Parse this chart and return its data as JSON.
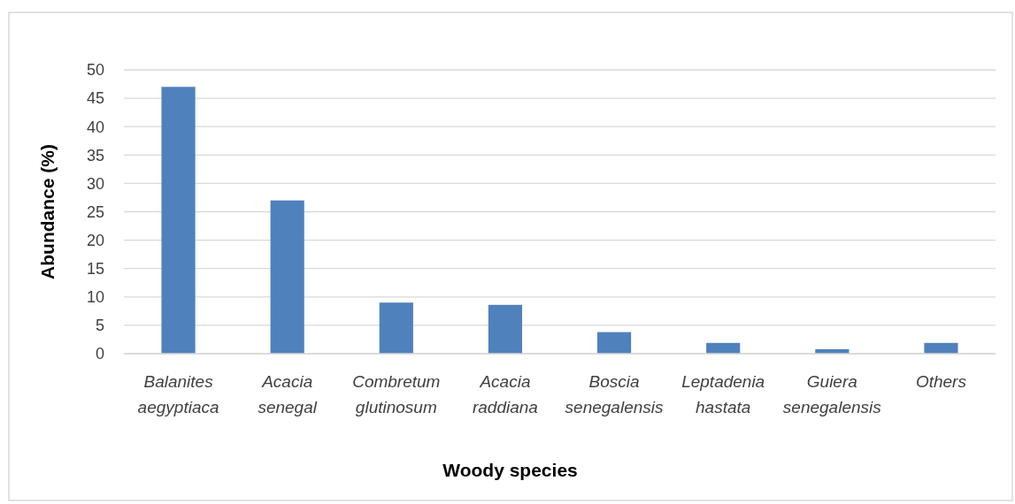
{
  "chart_data": {
    "type": "bar",
    "xlabel": "Woody species",
    "ylabel": "Abundance (%)",
    "categories": [
      "Balanites aegyptiaca",
      "Acacia senegal",
      "Combretum glutinosum",
      "Acacia raddiana",
      "Boscia senegalensis",
      "Leptadenia hastata",
      "Guiera senegalensis",
      "Others"
    ],
    "values": [
      47,
      27,
      9,
      8.6,
      3.8,
      1.9,
      0.8,
      1.9
    ],
    "color": "#4f81bd",
    "ylim": [
      0,
      50
    ],
    "yticks": [
      0,
      5,
      10,
      15,
      20,
      25,
      30,
      35,
      40,
      45,
      50
    ],
    "grid": "y"
  }
}
